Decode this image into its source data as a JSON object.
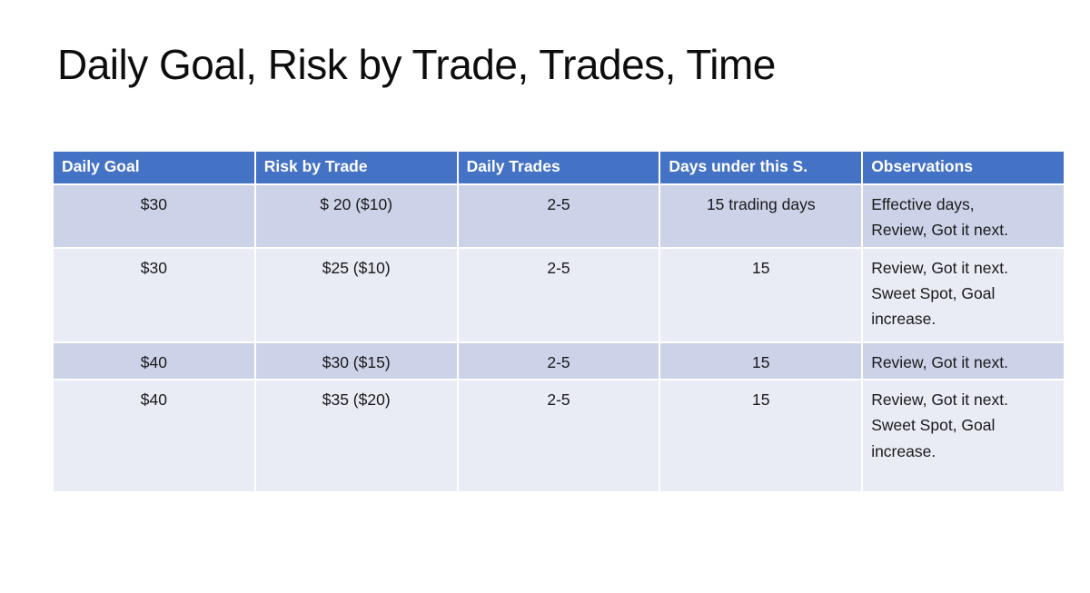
{
  "slide": {
    "title": "Daily Goal, Risk by Trade, Trades, Time"
  },
  "table": {
    "columns": [
      "Daily Goal",
      "Risk by Trade",
      "Daily Trades",
      "Days under this S.",
      "Observations"
    ],
    "rows": [
      {
        "daily_goal": "$30",
        "risk_by_trade": "$ 20 ($10)",
        "daily_trades": "2-5",
        "days_under": "15 trading days",
        "observations": "Effective days,\nReview, Got it next."
      },
      {
        "daily_goal": "$30",
        "risk_by_trade": "$25 ($10)",
        "daily_trades": "2-5",
        "days_under": "15",
        "observations": "Review, Got it next.\nSweet Spot, Goal\nincrease."
      },
      {
        "daily_goal": "$40",
        "risk_by_trade": "$30 ($15)",
        "daily_trades": "2-5",
        "days_under": "15",
        "observations": "Review, Got it next."
      },
      {
        "daily_goal": "$40",
        "risk_by_trade": "$35 ($20)",
        "daily_trades": "2-5",
        "days_under": "15",
        "observations": "Review, Got it next.\nSweet Spot, Goal\nincrease."
      }
    ],
    "colors": {
      "header_bg": "#4472C4",
      "header_text": "#FFFFFF",
      "band_dark": "#CCD3E8",
      "band_light": "#E9EBF5",
      "body_text": "#1A1A1A",
      "border": "#FFFFFF"
    }
  }
}
